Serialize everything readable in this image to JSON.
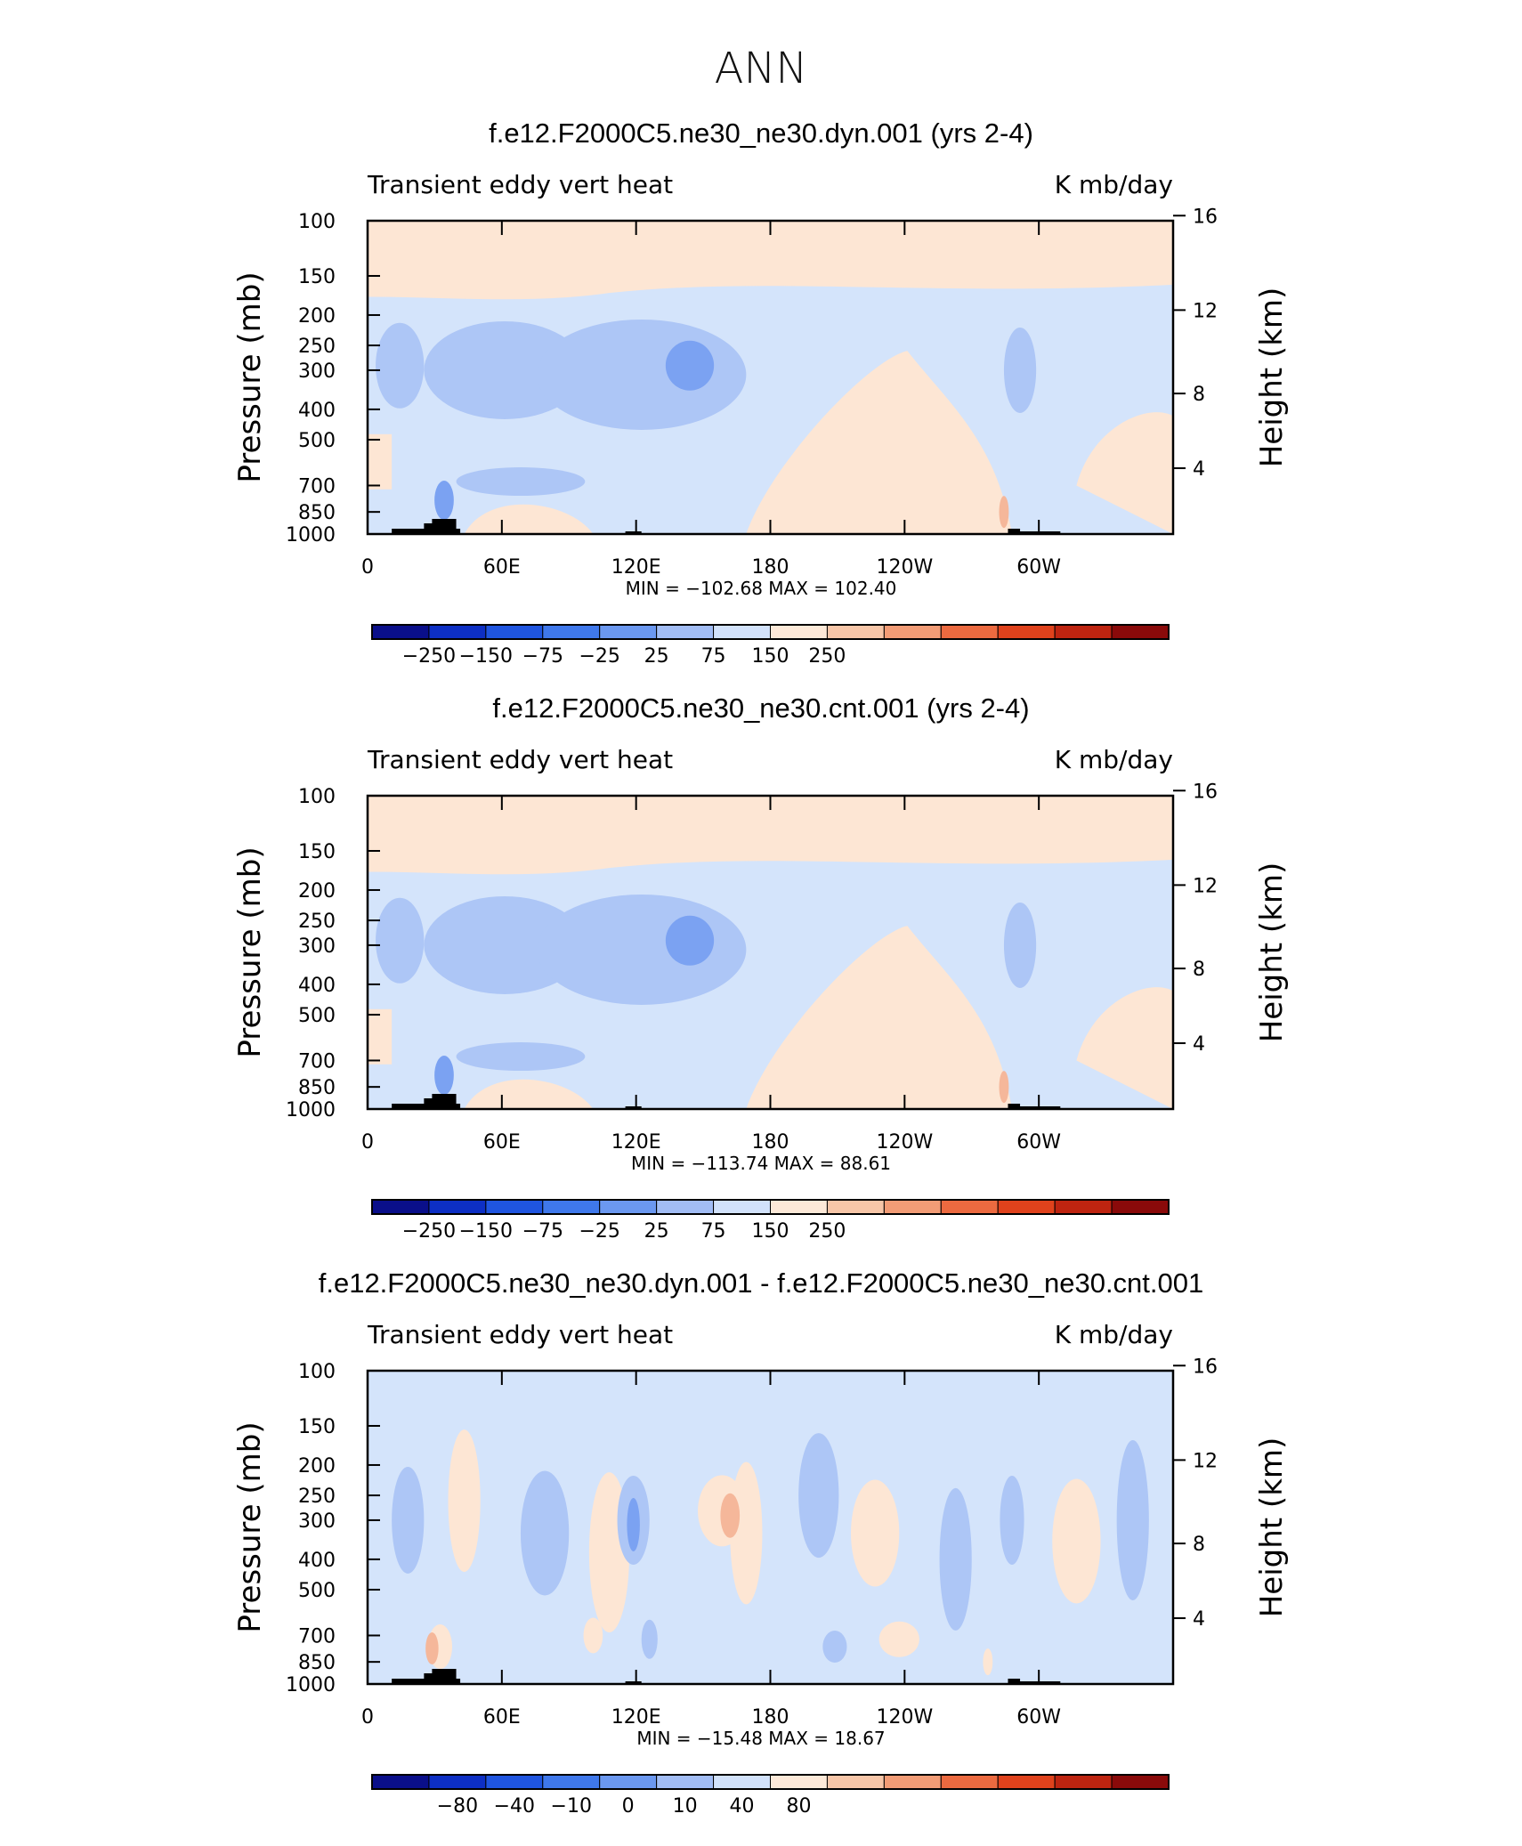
{
  "figure_title": "ANN",
  "chart_data": [
    {
      "type": "heatmap",
      "title": "f.e12.F2000C5.ne30_ne30.dyn.001 (yrs 2-4)",
      "left_label": "Transient eddy vert heat",
      "right_label": "K mb/day",
      "ylabel": "Pressure (mb)",
      "ylabel_right": "Height (km)",
      "x_ticks": [
        "0",
        "60E",
        "120E",
        "180",
        "120W",
        "60W"
      ],
      "y_ticks": [
        "100",
        "150",
        "200",
        "250",
        "300",
        "400",
        "500",
        "700",
        "850",
        "1000"
      ],
      "y_right_ticks": [
        "16",
        "12",
        "8",
        "4"
      ],
      "y_scale": "log",
      "min_max_text": "MIN = −102.68   MAX = 102.40",
      "min": -102.68,
      "max": 102.4,
      "colorbar_labels": [
        "−250",
        "−150",
        "−75",
        "−25",
        "25",
        "75",
        "150",
        "250"
      ],
      "contour_levels": [
        -250,
        -200,
        -150,
        -100,
        -75,
        -50,
        -25,
        0,
        25,
        50,
        75,
        100,
        150,
        200,
        250
      ]
    },
    {
      "type": "heatmap",
      "title": "f.e12.F2000C5.ne30_ne30.cnt.001 (yrs 2-4)",
      "left_label": "Transient eddy vert heat",
      "right_label": "K mb/day",
      "ylabel": "Pressure (mb)",
      "ylabel_right": "Height (km)",
      "x_ticks": [
        "0",
        "60E",
        "120E",
        "180",
        "120W",
        "60W"
      ],
      "y_ticks": [
        "100",
        "150",
        "200",
        "250",
        "300",
        "400",
        "500",
        "700",
        "850",
        "1000"
      ],
      "y_right_ticks": [
        "16",
        "12",
        "8",
        "4"
      ],
      "y_scale": "log",
      "min_max_text": "MIN = −113.74   MAX =   88.61",
      "min": -113.74,
      "max": 88.61,
      "colorbar_labels": [
        "−250",
        "−150",
        "−75",
        "−25",
        "25",
        "75",
        "150",
        "250"
      ],
      "contour_levels": [
        -250,
        -200,
        -150,
        -100,
        -75,
        -50,
        -25,
        0,
        25,
        50,
        75,
        100,
        150,
        200,
        250
      ]
    },
    {
      "type": "heatmap",
      "title": "f.e12.F2000C5.ne30_ne30.dyn.001 - f.e12.F2000C5.ne30_ne30.cnt.001",
      "left_label": "Transient eddy vert heat",
      "right_label": "K mb/day",
      "ylabel": "Pressure (mb)",
      "ylabel_right": "Height (km)",
      "x_ticks": [
        "0",
        "60E",
        "120E",
        "180",
        "120W",
        "60W"
      ],
      "y_ticks": [
        "100",
        "150",
        "200",
        "250",
        "300",
        "400",
        "500",
        "700",
        "850",
        "1000"
      ],
      "y_right_ticks": [
        "16",
        "12",
        "8",
        "4"
      ],
      "y_scale": "log",
      "min_max_text": "MIN = −15.48   MAX =   18.67",
      "min": -15.48,
      "max": 18.67,
      "colorbar_labels": [
        "−80",
        "−40",
        "−10",
        "0",
        "10",
        "40",
        "80"
      ],
      "contour_levels": [
        -100,
        -80,
        -60,
        -40,
        -20,
        -10,
        -5,
        0,
        5,
        10,
        20,
        40,
        60,
        80,
        100
      ]
    }
  ],
  "colors": {
    "colorbar": [
      "#0a0f8a",
      "#0d2fc4",
      "#1f55e0",
      "#3f78eb",
      "#6b98f0",
      "#a2bdf5",
      "#d2e2fb",
      "#fde9d8",
      "#f7c6a8",
      "#f29c76",
      "#ec6a40",
      "#e0421c",
      "#be2410",
      "#8a0a0a"
    ],
    "field_neutral": "#d4e4fb",
    "field_warm": "#fde6d4",
    "field_cool": "#adc6f6",
    "field_cool_strong": "#7ba2f2",
    "field_warm_strong": "#f5b79a",
    "topography": "#000000"
  }
}
